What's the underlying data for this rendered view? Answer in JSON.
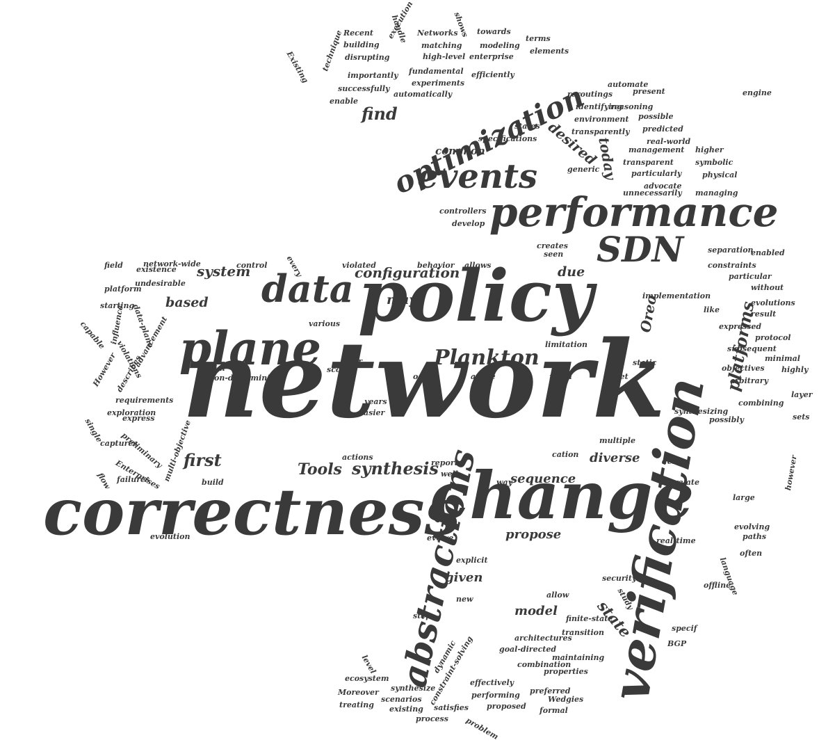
{
  "words": [
    {
      "text": "network",
      "color": "#3a3a3a"
    },
    {
      "text": "correctness",
      "color": "#3a3a3a"
    },
    {
      "text": "change",
      "color": "#3a3a3a"
    },
    {
      "text": "policy",
      "color": "#3a3a3a"
    },
    {
      "text": "verification",
      "color": "#3a3a3a"
    },
    {
      "text": "plane",
      "color": "#3a3a3a"
    },
    {
      "text": "performance",
      "color": "#3a3a3a"
    },
    {
      "text": "abstractions",
      "color": "#3a3a3a"
    },
    {
      "text": "optimization",
      "color": "#3a3a3a"
    },
    {
      "text": "data",
      "color": "#3a3a3a"
    },
    {
      "text": "events",
      "color": "#3a3a3a"
    },
    {
      "text": "SDN",
      "color": "#3a3a3a"
    },
    {
      "text": "Plankton",
      "color": "#3a3a3a"
    },
    {
      "text": "platforms",
      "color": "#3a3a3a"
    },
    {
      "text": "Oreo",
      "color": "#3a3a3a"
    },
    {
      "text": "state",
      "color": "#3a3a3a"
    },
    {
      "text": "synthesis",
      "color": "#3a3a3a"
    },
    {
      "text": "Tools",
      "color": "#3a3a3a"
    },
    {
      "text": "first",
      "color": "#3a3a3a"
    },
    {
      "text": "configuration",
      "color": "#3a3a3a"
    },
    {
      "text": "system",
      "color": "#3a3a3a"
    },
    {
      "text": "based",
      "color": "#3a3a3a"
    },
    {
      "text": "may",
      "color": "#3a3a3a"
    },
    {
      "text": "due",
      "color": "#3a3a3a"
    },
    {
      "text": "find",
      "color": "#3a3a3a"
    },
    {
      "text": "desired",
      "color": "#3a3a3a"
    },
    {
      "text": "today",
      "color": "#3a3a3a"
    },
    {
      "text": "common",
      "color": "#3a3a3a"
    },
    {
      "text": "sequence",
      "color": "#3a3a3a"
    },
    {
      "text": "diverse",
      "color": "#3a3a3a"
    },
    {
      "text": "propose",
      "color": "#3a3a3a"
    },
    {
      "text": "given",
      "color": "#3a3a3a"
    },
    {
      "text": "model",
      "color": "#3a3a3a"
    },
    {
      "text": "Recent",
      "color": "#3a3a3a"
    },
    {
      "text": "building",
      "color": "#3a3a3a"
    },
    {
      "text": "disrupting",
      "color": "#3a3a3a"
    },
    {
      "text": "Networks",
      "color": "#3a3a3a"
    },
    {
      "text": "towards",
      "color": "#3a3a3a"
    },
    {
      "text": "terms",
      "color": "#3a3a3a"
    },
    {
      "text": "matching",
      "color": "#3a3a3a"
    },
    {
      "text": "modeling",
      "color": "#3a3a3a"
    },
    {
      "text": "elements",
      "color": "#3a3a3a"
    },
    {
      "text": "high-level",
      "color": "#3a3a3a"
    },
    {
      "text": "enterprise",
      "color": "#3a3a3a"
    },
    {
      "text": "handle",
      "color": "#3a3a3a"
    },
    {
      "text": "execution",
      "color": "#3a3a3a"
    },
    {
      "text": "shows",
      "color": "#3a3a3a"
    },
    {
      "text": "Existing",
      "color": "#3a3a3a"
    },
    {
      "text": "technique",
      "color": "#3a3a3a"
    },
    {
      "text": "importantly",
      "color": "#3a3a3a"
    },
    {
      "text": "fundamental",
      "color": "#3a3a3a"
    },
    {
      "text": "experiments",
      "color": "#3a3a3a"
    },
    {
      "text": "efficiently",
      "color": "#3a3a3a"
    },
    {
      "text": "successfully",
      "color": "#3a3a3a"
    },
    {
      "text": "enable",
      "color": "#3a3a3a"
    },
    {
      "text": "automatically",
      "color": "#3a3a3a"
    },
    {
      "text": "automate",
      "color": "#3a3a3a"
    },
    {
      "text": "reroutings",
      "color": "#3a3a3a"
    },
    {
      "text": "present",
      "color": "#3a3a3a"
    },
    {
      "text": "engine",
      "color": "#3a3a3a"
    },
    {
      "text": "identifying",
      "color": "#3a3a3a"
    },
    {
      "text": "reasoning",
      "color": "#3a3a3a"
    },
    {
      "text": "environment",
      "color": "#3a3a3a"
    },
    {
      "text": "possible",
      "color": "#3a3a3a"
    },
    {
      "text": "states",
      "color": "#3a3a3a"
    },
    {
      "text": "transparently",
      "color": "#3a3a3a"
    },
    {
      "text": "predicted",
      "color": "#3a3a3a"
    },
    {
      "text": "specifications",
      "color": "#3a3a3a"
    },
    {
      "text": "real-world",
      "color": "#3a3a3a"
    },
    {
      "text": "management",
      "color": "#3a3a3a"
    },
    {
      "text": "higher",
      "color": "#3a3a3a"
    },
    {
      "text": "transparent",
      "color": "#3a3a3a"
    },
    {
      "text": "symbolic",
      "color": "#3a3a3a"
    },
    {
      "text": "generic",
      "color": "#3a3a3a"
    },
    {
      "text": "particularly",
      "color": "#3a3a3a"
    },
    {
      "text": "physical",
      "color": "#3a3a3a"
    },
    {
      "text": "advocate",
      "color": "#3a3a3a"
    },
    {
      "text": "unnecessarily",
      "color": "#3a3a3a"
    },
    {
      "text": "managing",
      "color": "#3a3a3a"
    },
    {
      "text": "controllers",
      "color": "#3a3a3a"
    },
    {
      "text": "develop",
      "color": "#3a3a3a"
    },
    {
      "text": "creates",
      "color": "#3a3a3a"
    },
    {
      "text": "seen",
      "color": "#3a3a3a"
    },
    {
      "text": "separation",
      "color": "#3a3a3a"
    },
    {
      "text": "enabled",
      "color": "#3a3a3a"
    },
    {
      "text": "constraints",
      "color": "#3a3a3a"
    },
    {
      "text": "particular",
      "color": "#3a3a3a"
    },
    {
      "text": "without",
      "color": "#3a3a3a"
    },
    {
      "text": "implementation",
      "color": "#3a3a3a"
    },
    {
      "text": "like",
      "color": "#3a3a3a"
    },
    {
      "text": "evolutions",
      "color": "#3a3a3a"
    },
    {
      "text": "result",
      "color": "#3a3a3a"
    },
    {
      "text": "expressed",
      "color": "#3a3a3a"
    },
    {
      "text": "protocol",
      "color": "#3a3a3a"
    },
    {
      "text": "subsequent",
      "color": "#3a3a3a"
    },
    {
      "text": "minimal",
      "color": "#3a3a3a"
    },
    {
      "text": "highly",
      "color": "#3a3a3a"
    },
    {
      "text": "objectives",
      "color": "#3a3a3a"
    },
    {
      "text": "arbitrary",
      "color": "#3a3a3a"
    },
    {
      "text": "layer",
      "color": "#3a3a3a"
    },
    {
      "text": "combining",
      "color": "#3a3a3a"
    },
    {
      "text": "sets",
      "color": "#3a3a3a"
    },
    {
      "text": "possibly",
      "color": "#3a3a3a"
    },
    {
      "text": "field",
      "color": "#3a3a3a"
    },
    {
      "text": "existence",
      "color": "#3a3a3a"
    },
    {
      "text": "network-wide",
      "color": "#3a3a3a"
    },
    {
      "text": "control",
      "color": "#3a3a3a"
    },
    {
      "text": "platform",
      "color": "#3a3a3a"
    },
    {
      "text": "undesirable",
      "color": "#3a3a3a"
    },
    {
      "text": "starting",
      "color": "#3a3a3a"
    },
    {
      "text": "every",
      "color": "#3a3a3a"
    },
    {
      "text": "violated",
      "color": "#3a3a3a"
    },
    {
      "text": "behavior",
      "color": "#3a3a3a"
    },
    {
      "text": "allows",
      "color": "#3a3a3a"
    },
    {
      "text": "data-plane",
      "color": "#3a3a3a"
    },
    {
      "text": "capable",
      "color": "#3a3a3a"
    },
    {
      "text": "influence",
      "color": "#3a3a3a"
    },
    {
      "text": "various",
      "color": "#3a3a3a"
    },
    {
      "text": "violations",
      "color": "#3a3a3a"
    },
    {
      "text": "However",
      "color": "#3a3a3a"
    },
    {
      "text": "describes",
      "color": "#3a3a3a"
    },
    {
      "text": "advancement",
      "color": "#3a3a3a"
    },
    {
      "text": "Initial",
      "color": "#3a3a3a"
    },
    {
      "text": "non-deterministic",
      "color": "#3a3a3a"
    },
    {
      "text": "user",
      "color": "#3a3a3a"
    },
    {
      "text": "limitation",
      "color": "#3a3a3a"
    },
    {
      "text": "scope",
      "color": "#3a3a3a"
    },
    {
      "text": "occur",
      "color": "#3a3a3a"
    },
    {
      "text": "argue",
      "color": "#3a3a3a"
    },
    {
      "text": "novel",
      "color": "#3a3a3a"
    },
    {
      "text": "met",
      "color": "#3a3a3a"
    },
    {
      "text": "static",
      "color": "#3a3a3a"
    },
    {
      "text": "requirements",
      "color": "#3a3a3a"
    },
    {
      "text": "exploration",
      "color": "#3a3a3a"
    },
    {
      "text": "express",
      "color": "#3a3a3a"
    },
    {
      "text": "years",
      "color": "#3a3a3a"
    },
    {
      "text": "easier",
      "color": "#3a3a3a"
    },
    {
      "text": "synthesizing",
      "color": "#3a3a3a"
    },
    {
      "text": "single",
      "color": "#3a3a3a"
    },
    {
      "text": "preliminary",
      "color": "#3a3a3a"
    },
    {
      "text": "captures",
      "color": "#3a3a3a"
    },
    {
      "text": "multi-objective",
      "color": "#3a3a3a"
    },
    {
      "text": "multiple",
      "color": "#3a3a3a"
    },
    {
      "text": "Enterprises",
      "color": "#3a3a3a"
    },
    {
      "text": "actions",
      "color": "#3a3a3a"
    },
    {
      "text": "cation",
      "color": "#3a3a3a"
    },
    {
      "text": "report",
      "color": "#3a3a3a"
    },
    {
      "text": "well",
      "color": "#3a3a3a"
    },
    {
      "text": "design",
      "color": "#3a3a3a"
    },
    {
      "text": "flow",
      "color": "#3a3a3a"
    },
    {
      "text": "failures",
      "color": "#3a3a3a"
    },
    {
      "text": "build",
      "color": "#3a3a3a"
    },
    {
      "text": "way",
      "color": "#3a3a3a"
    },
    {
      "text": "correlate",
      "color": "#3a3a3a"
    },
    {
      "text": "large",
      "color": "#3a3a3a"
    },
    {
      "text": "however",
      "color": "#3a3a3a"
    },
    {
      "text": "evolution",
      "color": "#3a3a3a"
    },
    {
      "text": "evolve",
      "color": "#3a3a3a"
    },
    {
      "text": "real-time",
      "color": "#3a3a3a"
    },
    {
      "text": "evolving",
      "color": "#3a3a3a"
    },
    {
      "text": "paths",
      "color": "#3a3a3a"
    },
    {
      "text": "language",
      "color": "#3a3a3a"
    },
    {
      "text": "often",
      "color": "#3a3a3a"
    },
    {
      "text": "explicit",
      "color": "#3a3a3a"
    },
    {
      "text": "security",
      "color": "#3a3a3a"
    },
    {
      "text": "offline",
      "color": "#3a3a3a"
    },
    {
      "text": "new",
      "color": "#3a3a3a"
    },
    {
      "text": "allow",
      "color": "#3a3a3a"
    },
    {
      "text": "study",
      "color": "#3a3a3a"
    },
    {
      "text": "finite-state",
      "color": "#3a3a3a"
    },
    {
      "text": "step",
      "color": "#3a3a3a"
    },
    {
      "text": "transition",
      "color": "#3a3a3a"
    },
    {
      "text": "specif",
      "color": "#3a3a3a"
    },
    {
      "text": "architectures",
      "color": "#3a3a3a"
    },
    {
      "text": "BGP",
      "color": "#3a3a3a"
    },
    {
      "text": "level",
      "color": "#3a3a3a"
    },
    {
      "text": "dynamic",
      "color": "#3a3a3a"
    },
    {
      "text": "constraint-solving",
      "color": "#3a3a3a"
    },
    {
      "text": "goal-directed",
      "color": "#3a3a3a"
    },
    {
      "text": "maintaining",
      "color": "#3a3a3a"
    },
    {
      "text": "combination",
      "color": "#3a3a3a"
    },
    {
      "text": "properties",
      "color": "#3a3a3a"
    },
    {
      "text": "effectively",
      "color": "#3a3a3a"
    },
    {
      "text": "ecosystem",
      "color": "#3a3a3a"
    },
    {
      "text": "synthesize",
      "color": "#3a3a3a"
    },
    {
      "text": "preferred",
      "color": "#3a3a3a"
    },
    {
      "text": "Moreover",
      "color": "#3a3a3a"
    },
    {
      "text": "scenarios",
      "color": "#3a3a3a"
    },
    {
      "text": "performing",
      "color": "#3a3a3a"
    },
    {
      "text": "Wedgies",
      "color": "#3a3a3a"
    },
    {
      "text": "treating",
      "color": "#3a3a3a"
    },
    {
      "text": "existing",
      "color": "#3a3a3a"
    },
    {
      "text": "satisfies",
      "color": "#3a3a3a"
    },
    {
      "text": "proposed",
      "color": "#3a3a3a"
    },
    {
      "text": "formal",
      "color": "#3a3a3a"
    },
    {
      "text": "process",
      "color": "#3a3a3a"
    },
    {
      "text": "problem",
      "color": "#3a3a3a"
    }
  ]
}
